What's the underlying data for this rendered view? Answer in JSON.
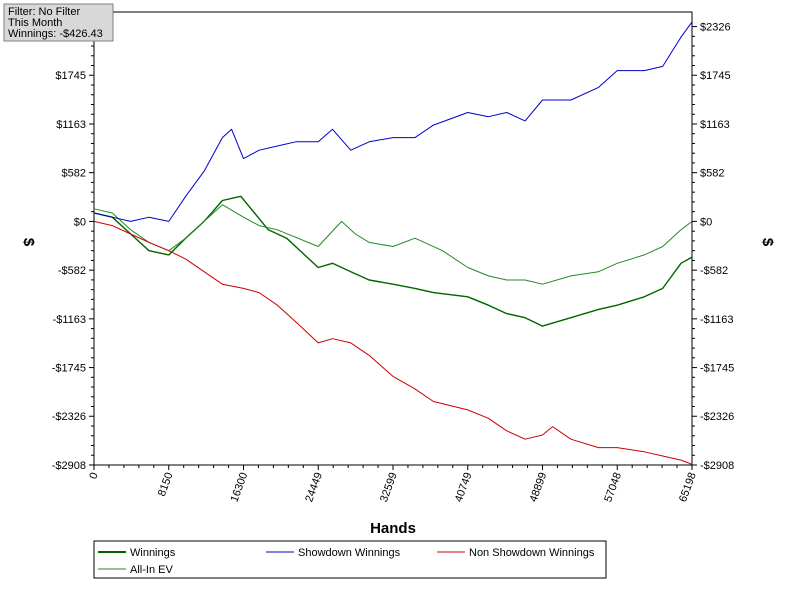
{
  "filter_box": {
    "lines": [
      "Filter: No Filter",
      "This Month",
      "Winnings: -$426.43"
    ]
  },
  "chart_data": {
    "type": "line",
    "title": "",
    "xlabel": "Hands",
    "ylabel_left": "$",
    "ylabel_right": "$",
    "xlim": [
      0,
      65198
    ],
    "ylim": [
      -2908,
      2500
    ],
    "x_ticks": [
      0,
      8150,
      16300,
      24449,
      32599,
      40749,
      48899,
      57048,
      65198
    ],
    "x_tick_labels": [
      "0",
      "8150",
      "16300",
      "24449",
      "32599",
      "40749",
      "48899",
      "57048",
      "65198"
    ],
    "y_ticks": [
      2326,
      1745,
      1163,
      582,
      0,
      -582,
      -1163,
      -1745,
      -2326,
      -2908
    ],
    "y_tick_labels": [
      "$2326",
      "$1745",
      "$1163",
      "$582",
      "$0",
      "-$582",
      "-$1163",
      "-$1745",
      "-$2326",
      "-$2908"
    ],
    "grid": true,
    "legend_position": "bottom",
    "series": [
      {
        "name": "Winnings",
        "color": "#006400",
        "x": [
          0,
          2000,
          4000,
          6000,
          8150,
          10000,
          12000,
          14000,
          16000,
          17500,
          19000,
          21000,
          24449,
          26000,
          28000,
          30000,
          32599,
          35000,
          37000,
          40749,
          43000,
          45000,
          47000,
          48899,
          52000,
          55000,
          57048,
          60000,
          62000,
          64000,
          65198
        ],
        "y": [
          100,
          50,
          -150,
          -350,
          -400,
          -200,
          0,
          250,
          300,
          100,
          -100,
          -200,
          -550,
          -500,
          -600,
          -700,
          -750,
          -800,
          -850,
          -900,
          -1000,
          -1100,
          -1150,
          -1250,
          -1150,
          -1050,
          -1000,
          -900,
          -800,
          -500,
          -426
        ]
      },
      {
        "name": "All-In EV",
        "color": "#228b22",
        "x": [
          0,
          2000,
          4000,
          6000,
          8150,
          10000,
          12000,
          14000,
          16300,
          18000,
          20000,
          24449,
          27000,
          28500,
          30000,
          32599,
          35000,
          38000,
          40749,
          43000,
          45000,
          47000,
          48899,
          52000,
          55000,
          57048,
          60000,
          62000,
          64000,
          65198
        ],
        "y": [
          150,
          100,
          -100,
          -250,
          -350,
          -200,
          0,
          200,
          50,
          -50,
          -100,
          -300,
          0,
          -150,
          -250,
          -300,
          -200,
          -350,
          -550,
          -650,
          -700,
          -700,
          -750,
          -650,
          -600,
          -500,
          -400,
          -300,
          -100,
          0
        ]
      },
      {
        "name": "Showdown Winnings",
        "color": "#0000cd",
        "x": [
          0,
          2000,
          4000,
          6000,
          8150,
          10000,
          12000,
          14000,
          15000,
          16300,
          18000,
          20000,
          22000,
          24449,
          26000,
          28000,
          30000,
          32599,
          35000,
          37000,
          40749,
          43000,
          45000,
          47000,
          48899,
          52000,
          55000,
          57048,
          60000,
          62000,
          64000,
          65198
        ],
        "y": [
          100,
          50,
          0,
          50,
          0,
          300,
          600,
          1000,
          1100,
          750,
          850,
          900,
          950,
          950,
          1100,
          850,
          950,
          1000,
          1000,
          1150,
          1300,
          1250,
          1300,
          1200,
          1450,
          1450,
          1600,
          1800,
          1800,
          1850,
          2200,
          2380
        ]
      },
      {
        "name": "Non Showdown Winnings",
        "color": "#cc0000",
        "x": [
          0,
          2000,
          4000,
          6000,
          8150,
          10000,
          12000,
          14000,
          16300,
          18000,
          20000,
          22000,
          24449,
          26000,
          28000,
          30000,
          32599,
          35000,
          37000,
          40749,
          43000,
          45000,
          47000,
          48899,
          50000,
          52000,
          55000,
          57048,
          60000,
          62000,
          64000,
          65198
        ],
        "y": [
          0,
          -50,
          -150,
          -250,
          -350,
          -450,
          -600,
          -750,
          -800,
          -850,
          -1000,
          -1200,
          -1450,
          -1400,
          -1450,
          -1600,
          -1850,
          -2000,
          -2150,
          -2250,
          -2350,
          -2500,
          -2600,
          -2550,
          -2450,
          -2600,
          -2700,
          -2700,
          -2750,
          -2800,
          -2850,
          -2900
        ]
      }
    ]
  }
}
